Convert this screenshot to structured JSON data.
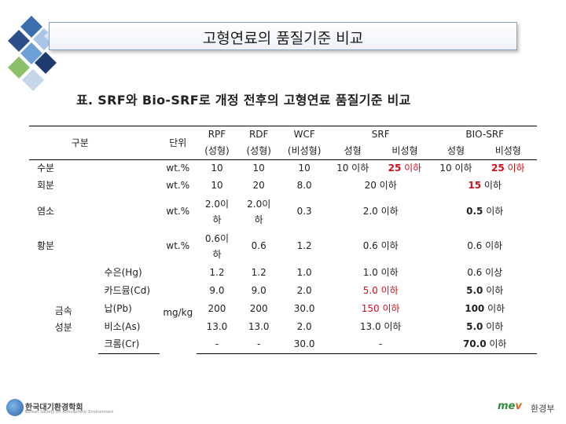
{
  "header": {
    "title": "고형연료의 품질기준 비교"
  },
  "caption": "표. SRF와 Bio-SRF로 개정 전후의 고형연료 품질기준 비교",
  "table": {
    "h_category": "구분",
    "h_unit": "단위",
    "h_rpf": "RPF",
    "h_rpf_sub": "(성형)",
    "h_rdf": "RDF",
    "h_rdf_sub": "(성형)",
    "h_wcf": "WCF",
    "h_wcf_sub": "(비성형)",
    "h_srf": "SRF",
    "h_bio_srf": "BIO-SRF",
    "h_srf_formed": "성형",
    "h_srf_unformed": "비성형",
    "h_bio_formed": "성형",
    "h_bio_unformed": "비성형",
    "moisture": {
      "label": "수분",
      "unit": "wt.%",
      "rpf": "10",
      "rdf": "10",
      "wcf": "10",
      "srf_f": "10 이하",
      "srf_u_num": "25",
      "srf_u_tail": " 이하",
      "bio_f": "10 이하",
      "bio_u_num": "25",
      "bio_u_tail": " 이하"
    },
    "ash": {
      "label": "회분",
      "unit": "wt.%",
      "rpf": "10",
      "rdf": "20",
      "wcf": "8.0",
      "srf": "20 이하",
      "bio_num": "15",
      "bio_tail": " 이하"
    },
    "chlorine": {
      "label": "염소",
      "unit": "wt.%",
      "rpf_l1": "2.0이",
      "rpf_l2": "하",
      "rdf_l1": "2.0이",
      "rdf_l2": "하",
      "wcf": "0.3",
      "srf": "2.0 이하",
      "bio_num": "0.5",
      "bio_tail": " 이하"
    },
    "sulfur": {
      "label": "황분",
      "unit": "wt.%",
      "rpf_l1": "0.6이",
      "rpf_l2": "하",
      "rdf": "0.6",
      "wcf": "1.2",
      "srf": "0.6 이하",
      "bio": "0.6 이하"
    },
    "metals_group_l1": "금속",
    "metals_group_l2": "성분",
    "metals_unit": "mg/kg",
    "mercury": {
      "label": "수은(Hg)",
      "rpf": "1.2",
      "rdf": "1.2",
      "wcf": "1.0",
      "srf": "1.0 이하",
      "bio": "0.6 이상"
    },
    "cadmium": {
      "label": "카드뮴(Cd)",
      "rpf": "9.0",
      "rdf": "9.0",
      "wcf": "2.0",
      "srf": "5.0 이하",
      "bio_num": "5.0",
      "bio_tail": " 이하"
    },
    "lead": {
      "label": "납(Pb)",
      "rpf": "200",
      "rdf": "200",
      "wcf": "30.0",
      "srf": "150 이하",
      "bio_num": "100",
      "bio_tail": " 이하"
    },
    "arsenic": {
      "label": "비소(As)",
      "rpf": "13.0",
      "rdf": "13.0",
      "wcf": "2.0",
      "srf": "13.0 이하",
      "bio_num": "5.0",
      "bio_tail": " 이하"
    },
    "chromium": {
      "label": "크롬(Cr)",
      "rpf": "-",
      "rdf": "-",
      "wcf": "30.0",
      "srf": "-",
      "bio_num": "70.0",
      "bio_tail": " 이하"
    }
  },
  "footer": {
    "left_logo_text": "한국대기환경학회",
    "left_logo_sub": "Korean Society for Atmospheric Environment",
    "right_logo_mark": "me",
    "right_logo_mark_v": "v",
    "right_logo_text": "환경부"
  },
  "colors": {
    "highlight": "#d0101a",
    "title_border": "#8aa0c0"
  }
}
